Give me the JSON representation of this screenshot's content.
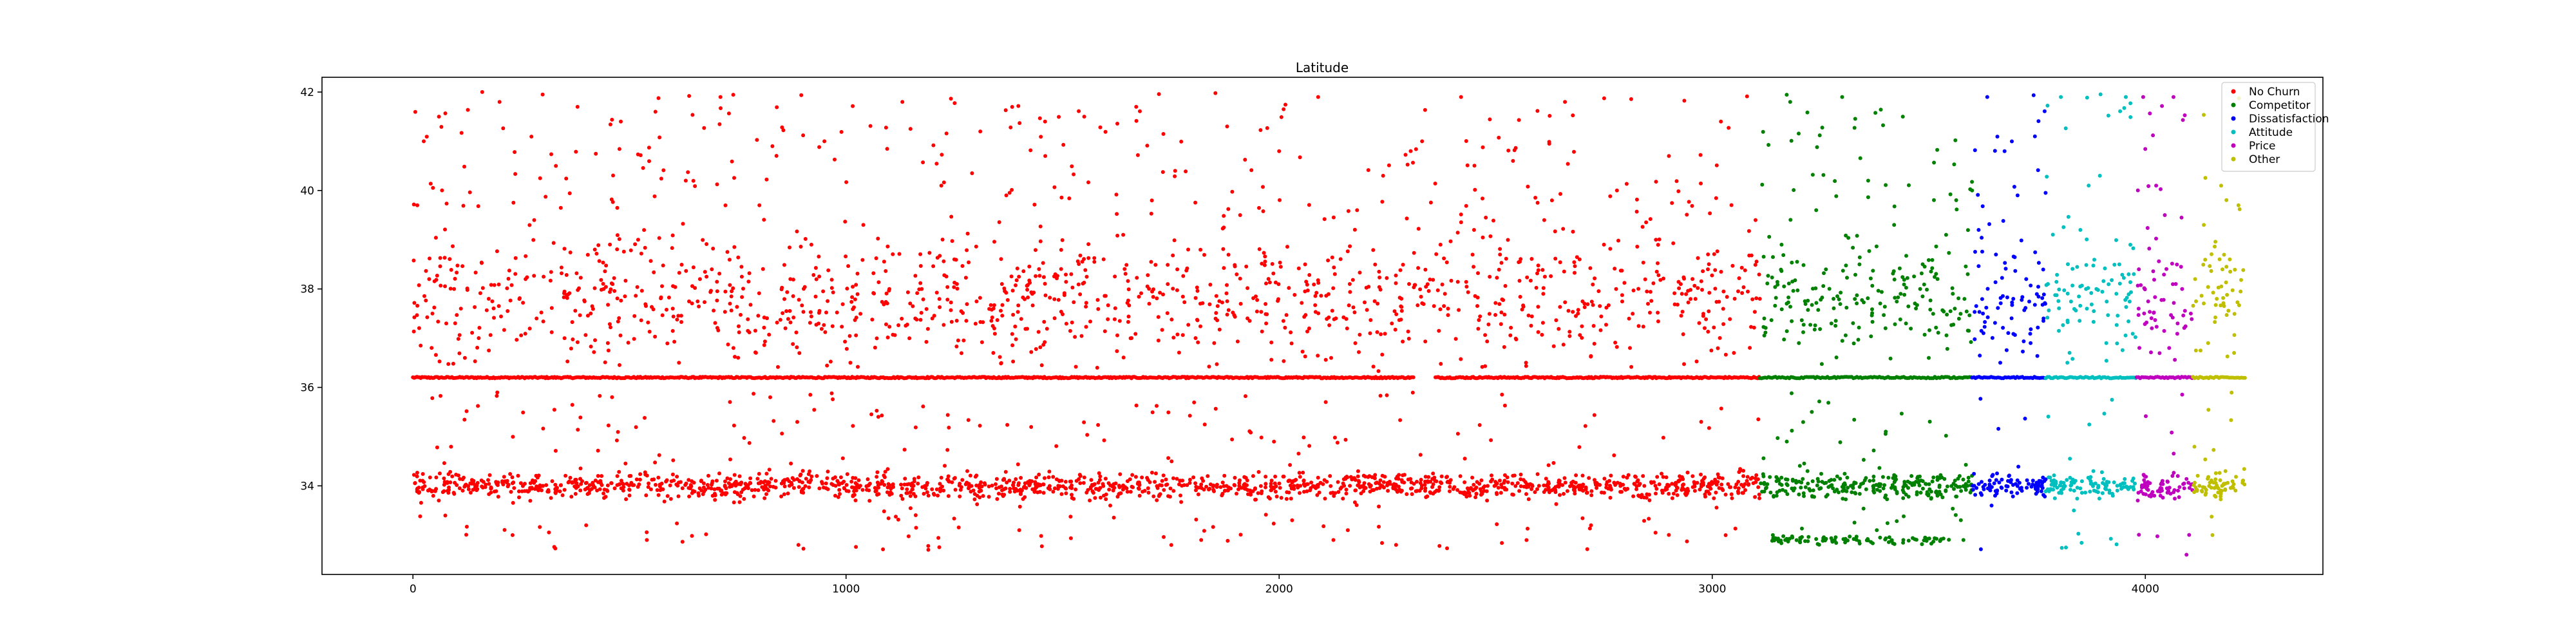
{
  "chart_data": {
    "type": "scatter",
    "title": "Latitude",
    "xlabel": "",
    "ylabel": "",
    "xlim": [
      -210,
      4410
    ],
    "ylim": [
      32.2,
      42.3
    ],
    "grid": false,
    "legend_position": "upper-right",
    "xticks": [
      0,
      1000,
      2000,
      3000,
      4000
    ],
    "xtick_labels": [
      "0",
      "1000",
      "2000",
      "3000",
      "4000"
    ],
    "yticks": [
      34,
      36,
      38,
      40,
      42
    ],
    "ytick_labels": [
      "34",
      "36",
      "38",
      "40",
      "42"
    ],
    "series": [
      {
        "name": "No Churn",
        "color": "#ff0000",
        "x_range": [
          0,
          3110
        ],
        "points": [
          [
            10,
            39.7
          ],
          [
            25,
            41.0
          ],
          [
            45,
            37.5
          ],
          [
            60,
            41.5
          ],
          [
            80,
            33.9
          ],
          [
            95,
            38.0
          ],
          [
            120,
            36.6
          ],
          [
            140,
            34.1
          ],
          [
            160,
            42.0
          ],
          [
            175,
            37.8
          ],
          [
            200,
            41.8
          ],
          [
            230,
            33.0
          ],
          [
            260,
            38.2
          ],
          [
            280,
            39.4
          ],
          [
            300,
            34.0
          ],
          [
            330,
            40.5
          ],
          [
            350,
            37.0
          ],
          [
            380,
            41.7
          ],
          [
            400,
            33.2
          ],
          [
            420,
            38.8
          ],
          [
            450,
            36.9
          ],
          [
            480,
            41.4
          ],
          [
            500,
            34.2
          ],
          [
            520,
            39.0
          ],
          [
            540,
            32.9
          ],
          [
            560,
            41.6
          ],
          [
            600,
            37.6
          ],
          [
            630,
            40.2
          ],
          [
            660,
            33.8
          ],
          [
            690,
            38.4
          ],
          [
            710,
            41.9
          ],
          [
            740,
            36.8
          ],
          [
            770,
            34.0
          ],
          [
            800,
            39.7
          ],
          [
            830,
            40.9
          ],
          [
            860,
            37.2
          ],
          [
            890,
            32.8
          ],
          [
            920,
            38.9
          ],
          [
            950,
            41.0
          ],
          [
            980,
            34.1
          ],
          [
            1010,
            36.5
          ],
          [
            1040,
            39.3
          ],
          [
            1070,
            33.9
          ],
          [
            1100,
            38.0
          ],
          [
            1130,
            41.8
          ],
          [
            1160,
            37.4
          ],
          [
            1190,
            32.7
          ],
          [
            1220,
            40.1
          ],
          [
            1250,
            38.6
          ],
          [
            1280,
            34.3
          ],
          [
            1310,
            41.2
          ],
          [
            1340,
            36.7
          ],
          [
            1370,
            39.9
          ],
          [
            1400,
            33.1
          ],
          [
            1430,
            37.9
          ],
          [
            1460,
            40.7
          ],
          [
            1490,
            34.0
          ],
          [
            1520,
            38.3
          ],
          [
            1550,
            41.5
          ],
          [
            1580,
            36.4
          ],
          [
            1610,
            33.6
          ],
          [
            1640,
            39.1
          ],
          [
            1670,
            41.7
          ],
          [
            1700,
            37.7
          ],
          [
            1730,
            34.1
          ],
          [
            1760,
            40.4
          ],
          [
            1790,
            38.8
          ],
          [
            1820,
            32.9
          ],
          [
            1850,
            36.9
          ],
          [
            1880,
            41.3
          ],
          [
            1910,
            39.5
          ],
          [
            1940,
            34.2
          ],
          [
            1970,
            37.3
          ],
          [
            2000,
            40.8
          ],
          [
            2030,
            33.3
          ],
          [
            2060,
            38.5
          ],
          [
            2090,
            41.9
          ],
          [
            2120,
            36.6
          ],
          [
            2150,
            34.0
          ],
          [
            2180,
            39.6
          ],
          [
            2210,
            37.1
          ],
          [
            2240,
            40.3
          ],
          [
            2270,
            32.8
          ],
          [
            2300,
            38.1
          ],
          [
            2330,
            41.0
          ],
          [
            2360,
            34.1
          ],
          [
            2390,
            37.6
          ],
          [
            2420,
            41.9
          ],
          [
            2450,
            39.2
          ],
          [
            2480,
            33.7
          ],
          [
            2510,
            38.7
          ],
          [
            2540,
            40.6
          ],
          [
            2570,
            36.5
          ],
          [
            2600,
            34.0
          ],
          [
            2630,
            39.8
          ],
          [
            2660,
            41.8
          ],
          [
            2690,
            37.5
          ],
          [
            2720,
            33.2
          ],
          [
            2750,
            38.9
          ],
          [
            2780,
            40.0
          ],
          [
            2810,
            36.8
          ],
          [
            2840,
            34.2
          ],
          [
            2870,
            39.0
          ],
          [
            2900,
            40.7
          ],
          [
            2930,
            37.9
          ],
          [
            2960,
            33.9
          ],
          [
            2990,
            38.4
          ],
          [
            3020,
            41.4
          ],
          [
            3050,
            36.7
          ],
          [
            3080,
            34.1
          ],
          [
            3100,
            39.4
          ],
          [
            3110,
            37.8
          ]
        ]
      },
      {
        "name": "Competitor",
        "color": "#008000",
        "x_range": [
          3110,
          3600
        ],
        "points": [
          [
            3120,
            37.4
          ],
          [
            3140,
            33.0
          ],
          [
            3160,
            38.9
          ],
          [
            3180,
            41.8
          ],
          [
            3200,
            36.9
          ],
          [
            3220,
            34.3
          ],
          [
            3240,
            39.6
          ],
          [
            3260,
            32.9
          ],
          [
            3280,
            37.8
          ],
          [
            3300,
            41.9
          ],
          [
            3320,
            34.0
          ],
          [
            3340,
            38.5
          ],
          [
            3360,
            40.2
          ],
          [
            3380,
            33.1
          ],
          [
            3400,
            37.2
          ],
          [
            3420,
            39.3
          ],
          [
            3440,
            41.5
          ],
          [
            3460,
            34.2
          ],
          [
            3480,
            38.0
          ],
          [
            3500,
            36.6
          ],
          [
            3520,
            33.8
          ],
          [
            3540,
            39.1
          ],
          [
            3560,
            37.6
          ],
          [
            3580,
            32.9
          ],
          [
            3590,
            38.3
          ],
          [
            3600,
            40.0
          ]
        ]
      },
      {
        "name": "Dissatisfaction",
        "color": "#0000ff",
        "x_range": [
          3600,
          3770
        ],
        "points": [
          [
            3605,
            34.0
          ],
          [
            3615,
            39.2
          ],
          [
            3625,
            37.5
          ],
          [
            3635,
            41.9
          ],
          [
            3645,
            33.6
          ],
          [
            3655,
            38.7
          ],
          [
            3665,
            36.5
          ],
          [
            3675,
            40.8
          ],
          [
            3685,
            34.2
          ],
          [
            3695,
            37.8
          ],
          [
            3705,
            39.9
          ],
          [
            3715,
            33.9
          ],
          [
            3725,
            38.2
          ],
          [
            3735,
            36.9
          ],
          [
            3745,
            41.1
          ],
          [
            3755,
            34.1
          ],
          [
            3765,
            37.4
          ]
        ]
      },
      {
        "name": "Attitude",
        "color": "#00bfbf",
        "x_range": [
          3770,
          3980
        ],
        "points": [
          [
            3775,
            38.1
          ],
          [
            3790,
            34.0
          ],
          [
            3805,
            41.9
          ],
          [
            3820,
            36.5
          ],
          [
            3835,
            33.5
          ],
          [
            3850,
            39.2
          ],
          [
            3865,
            37.6
          ],
          [
            3880,
            34.3
          ],
          [
            3895,
            40.3
          ],
          [
            3910,
            36.9
          ],
          [
            3925,
            33.8
          ],
          [
            3940,
            38.5
          ],
          [
            3955,
            41.9
          ],
          [
            3970,
            34.1
          ]
        ]
      },
      {
        "name": "Price",
        "color": "#bf00bf",
        "x_range": [
          3980,
          4110
        ],
        "points": [
          [
            3985,
            38.4
          ],
          [
            3995,
            41.9
          ],
          [
            4005,
            34.0
          ],
          [
            4015,
            37.2
          ],
          [
            4025,
            40.1
          ],
          [
            4035,
            33.8
          ],
          [
            4045,
            39.5
          ],
          [
            4055,
            36.8
          ],
          [
            4065,
            41.9
          ],
          [
            4075,
            34.2
          ],
          [
            4085,
            38.0
          ],
          [
            4095,
            32.6
          ],
          [
            4105,
            37.5
          ]
        ]
      },
      {
        "name": "Other",
        "color": "#bfbf00",
        "x_range": [
          4110,
          4230
        ],
        "points": [
          [
            4115,
            38.2
          ],
          [
            4125,
            34.0
          ],
          [
            4135,
            39.3
          ],
          [
            4145,
            36.9
          ],
          [
            4155,
            33.0
          ],
          [
            4165,
            37.8
          ],
          [
            4175,
            40.1
          ],
          [
            4185,
            34.3
          ],
          [
            4195,
            38.6
          ],
          [
            4205,
            36.7
          ],
          [
            4215,
            39.7
          ],
          [
            4225,
            34.1
          ]
        ]
      }
    ],
    "dense_bands": [
      34.0,
      36.2
    ]
  }
}
